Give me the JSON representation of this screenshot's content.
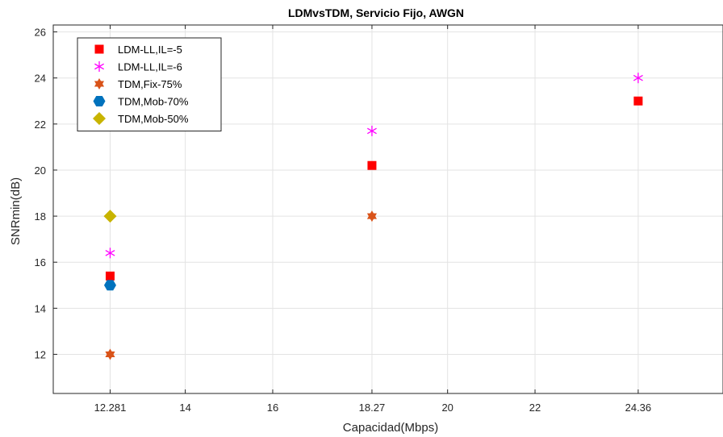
{
  "chart_data": {
    "type": "scatter",
    "title": "LDMvsTDM, Servicio Fijo, AWGN",
    "xlabel": "Capacidad(Mbps)",
    "ylabel": "SNRmin(dB)",
    "xlim": [
      10.98,
      26.3
    ],
    "ylim": [
      10.3,
      26.3
    ],
    "xticks": [
      12.281,
      14,
      16,
      18.27,
      20,
      22,
      24.36
    ],
    "xtick_labels": [
      "12.281",
      "14",
      "16",
      "18.27",
      "20",
      "22",
      "24.36"
    ],
    "yticks": [
      12,
      14,
      16,
      18,
      20,
      22,
      24,
      26
    ],
    "ytick_labels": [
      "12",
      "14",
      "16",
      "18",
      "20",
      "22",
      "24",
      "26"
    ],
    "grid": true,
    "legend_position": "top-left",
    "series": [
      {
        "name": "LDM-LL,IL=-5",
        "marker": "square",
        "color": "#ff0000",
        "points": [
          [
            12.281,
            15.4
          ],
          [
            18.27,
            20.2
          ],
          [
            24.36,
            23.0
          ]
        ]
      },
      {
        "name": "LDM-LL,IL=-6",
        "marker": "asterisk",
        "color": "#ff00ff",
        "points": [
          [
            12.281,
            16.4
          ],
          [
            18.27,
            21.7
          ],
          [
            24.36,
            24.0
          ]
        ]
      },
      {
        "name": "TDM,Fix-75%",
        "marker": "hexagram",
        "color": "#d95319",
        "points": [
          [
            12.281,
            12.0
          ],
          [
            18.27,
            18.0
          ]
        ]
      },
      {
        "name": "TDM,Mob-70%",
        "marker": "hexagon",
        "color": "#0072bd",
        "points": [
          [
            12.281,
            15.0
          ]
        ]
      },
      {
        "name": "TDM,Mob-50%",
        "marker": "diamond",
        "color": "#c8b400",
        "points": [
          [
            12.281,
            18.0
          ]
        ]
      }
    ]
  }
}
